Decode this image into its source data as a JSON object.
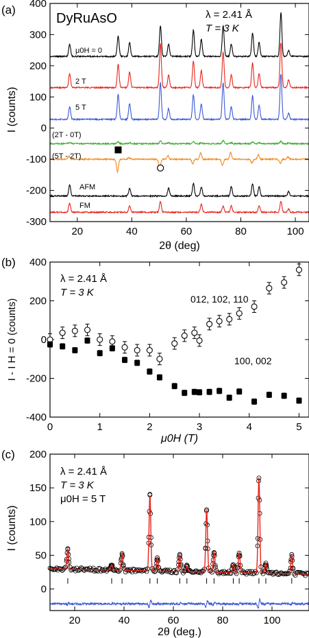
{
  "figure": {
    "panel_labels": [
      "(a)",
      "(b)",
      "(c)"
    ]
  },
  "chart_data": [
    {
      "type": "line",
      "panel": "(a)",
      "title": "DyRuAsO",
      "annotations": [
        "λ = 2.41 Å",
        "T = 3 K"
      ],
      "xlabel": "2θ (deg)",
      "ylabel": "I (counts)",
      "xlim": [
        10,
        105
      ],
      "ylim": [
        -300,
        400
      ],
      "xticks": [
        20,
        40,
        60,
        80,
        100
      ],
      "yticks": [
        -300,
        -200,
        -100,
        0,
        100,
        200,
        300,
        400
      ],
      "peaks_2theta": [
        17.2,
        35.0,
        39.2,
        50.5,
        53.5,
        62.6,
        65.5,
        73.5,
        76.5,
        84.3,
        86.7,
        94.7,
        97.5
      ],
      "series": [
        {
          "name": "μ0H = 0",
          "color": "#000000",
          "baseline": 230,
          "heights": [
            40,
            65,
            45,
            100,
            40,
            85,
            55,
            100,
            40,
            75,
            45,
            140,
            20
          ]
        },
        {
          "name": "2 T",
          "color": "#e8221a",
          "baseline": 130,
          "heights": [
            45,
            75,
            50,
            140,
            40,
            85,
            55,
            115,
            40,
            80,
            45,
            145,
            25
          ]
        },
        {
          "name": "5 T",
          "color": "#3a57d6",
          "baseline": 28,
          "heights": [
            40,
            80,
            50,
            118,
            35,
            80,
            50,
            118,
            40,
            75,
            45,
            145,
            20
          ]
        },
        {
          "name": "(2T - 0T)",
          "color": "#3aa82c",
          "baseline": -50,
          "heights": [
            4,
            6,
            3,
            8,
            3,
            6,
            3,
            10,
            3,
            6,
            3,
            8,
            2
          ]
        },
        {
          "name": "(5T - 2T)",
          "color": "#f08a1e",
          "baseline": -100,
          "heights": [
            10,
            -40,
            6,
            30,
            -12,
            15,
            -20,
            20,
            -22,
            12,
            -15,
            14,
            -8
          ]
        },
        {
          "name": "AFM",
          "color": "#000000",
          "baseline": -218,
          "heights": [
            35,
            0,
            25,
            0,
            25,
            40,
            30,
            0,
            30,
            40,
            30,
            0,
            15
          ]
        },
        {
          "name": "FM",
          "color": "#e8221a",
          "baseline": -270,
          "heights": [
            30,
            0,
            20,
            35,
            0,
            0,
            25,
            20,
            20,
            0,
            20,
            35,
            10
          ]
        }
      ],
      "markers": [
        {
          "shape": "filled-square",
          "x": 35.0,
          "y": -70
        },
        {
          "shape": "open-circle",
          "x": 50.5,
          "y": -128
        }
      ]
    },
    {
      "type": "scatter",
      "panel": "(b)",
      "annotations": [
        "λ = 2.41 Å",
        "T = 3 K"
      ],
      "xlabel": "μ0H (T)",
      "ylabel": "I - I H = 0 (counts)",
      "xlim": [
        0,
        5.2
      ],
      "ylim": [
        -400,
        400
      ],
      "xticks": [
        0,
        1,
        2,
        3,
        4,
        5
      ],
      "yticks": [
        -400,
        -200,
        0,
        200,
        400
      ],
      "series": [
        {
          "name": "012, 102, 110",
          "marker": "open-circle",
          "x": [
            0,
            0.25,
            0.5,
            0.75,
            1.0,
            1.25,
            1.5,
            1.75,
            2.0,
            2.2,
            2.5,
            2.7,
            2.9,
            3.0,
            3.2,
            3.4,
            3.6,
            3.8,
            4.1,
            4.4,
            4.7,
            5.0
          ],
          "y": [
            0,
            35,
            45,
            50,
            0,
            -10,
            -40,
            -55,
            -55,
            -100,
            -20,
            20,
            35,
            -5,
            80,
            95,
            105,
            135,
            170,
            265,
            295,
            360
          ],
          "err": [
            30,
            30,
            30,
            30,
            30,
            30,
            30,
            30,
            30,
            30,
            30,
            30,
            30,
            30,
            30,
            30,
            30,
            30,
            30,
            30,
            30,
            30
          ]
        },
        {
          "name": "100, 002",
          "marker": "filled-square",
          "x": [
            0,
            0.25,
            0.5,
            0.75,
            1.0,
            1.25,
            1.5,
            1.75,
            2.0,
            2.2,
            2.5,
            2.7,
            2.9,
            3.0,
            3.2,
            3.4,
            3.6,
            3.8,
            4.1,
            4.4,
            4.7,
            5.0
          ],
          "y": [
            -25,
            -35,
            -55,
            -5,
            -70,
            -45,
            -105,
            -120,
            -165,
            -195,
            -240,
            -275,
            -270,
            -272,
            -270,
            -265,
            -300,
            -268,
            -320,
            -285,
            -290,
            -315
          ],
          "err": [
            14,
            14,
            14,
            14,
            14,
            14,
            14,
            14,
            14,
            14,
            14,
            14,
            14,
            14,
            14,
            14,
            14,
            14,
            14,
            14,
            14,
            14
          ]
        }
      ]
    },
    {
      "type": "scatter",
      "panel": "(c)",
      "annotations": [
        "λ = 2.41 Å",
        "T = 3 K",
        "μ0H = 5 T"
      ],
      "xlabel": "2θ (deg.)",
      "ylabel": "I (counts)",
      "xlim": [
        10,
        115
      ],
      "ylim": [
        -32,
        200
      ],
      "xticks": [
        20,
        40,
        60,
        80,
        100
      ],
      "yticks": [
        0,
        50,
        100,
        150,
        200
      ],
      "peaks": [
        {
          "x": 17.2,
          "h": 30
        },
        {
          "x": 35.0,
          "h": 8
        },
        {
          "x": 39.2,
          "h": 25
        },
        {
          "x": 50.5,
          "h": 112
        },
        {
          "x": 53.5,
          "h": 20
        },
        {
          "x": 62.6,
          "h": 24
        },
        {
          "x": 65.5,
          "h": 8
        },
        {
          "x": 73.5,
          "h": 92
        },
        {
          "x": 76.5,
          "h": 30
        },
        {
          "x": 84.3,
          "h": 12
        },
        {
          "x": 86.7,
          "h": 30
        },
        {
          "x": 94.7,
          "h": 142
        },
        {
          "x": 97.5,
          "h": 15
        },
        {
          "x": 108.0,
          "h": 28
        }
      ],
      "background": {
        "start": 30,
        "end": 22
      },
      "bragg_ticks_2theta": [
        17.2,
        35.0,
        39.2,
        50.5,
        53.5,
        62.6,
        65.5,
        73.5,
        76.5,
        84.3,
        86.7,
        94.7,
        97.5,
        108.0
      ],
      "bragg_tick_y": 12,
      "difference_baseline": -22,
      "series": [
        {
          "name": "observed",
          "marker": "open-circle",
          "color": "#000000"
        },
        {
          "name": "calculated",
          "color": "#e8221a"
        },
        {
          "name": "difference",
          "color": "#3a57d6"
        }
      ]
    }
  ]
}
